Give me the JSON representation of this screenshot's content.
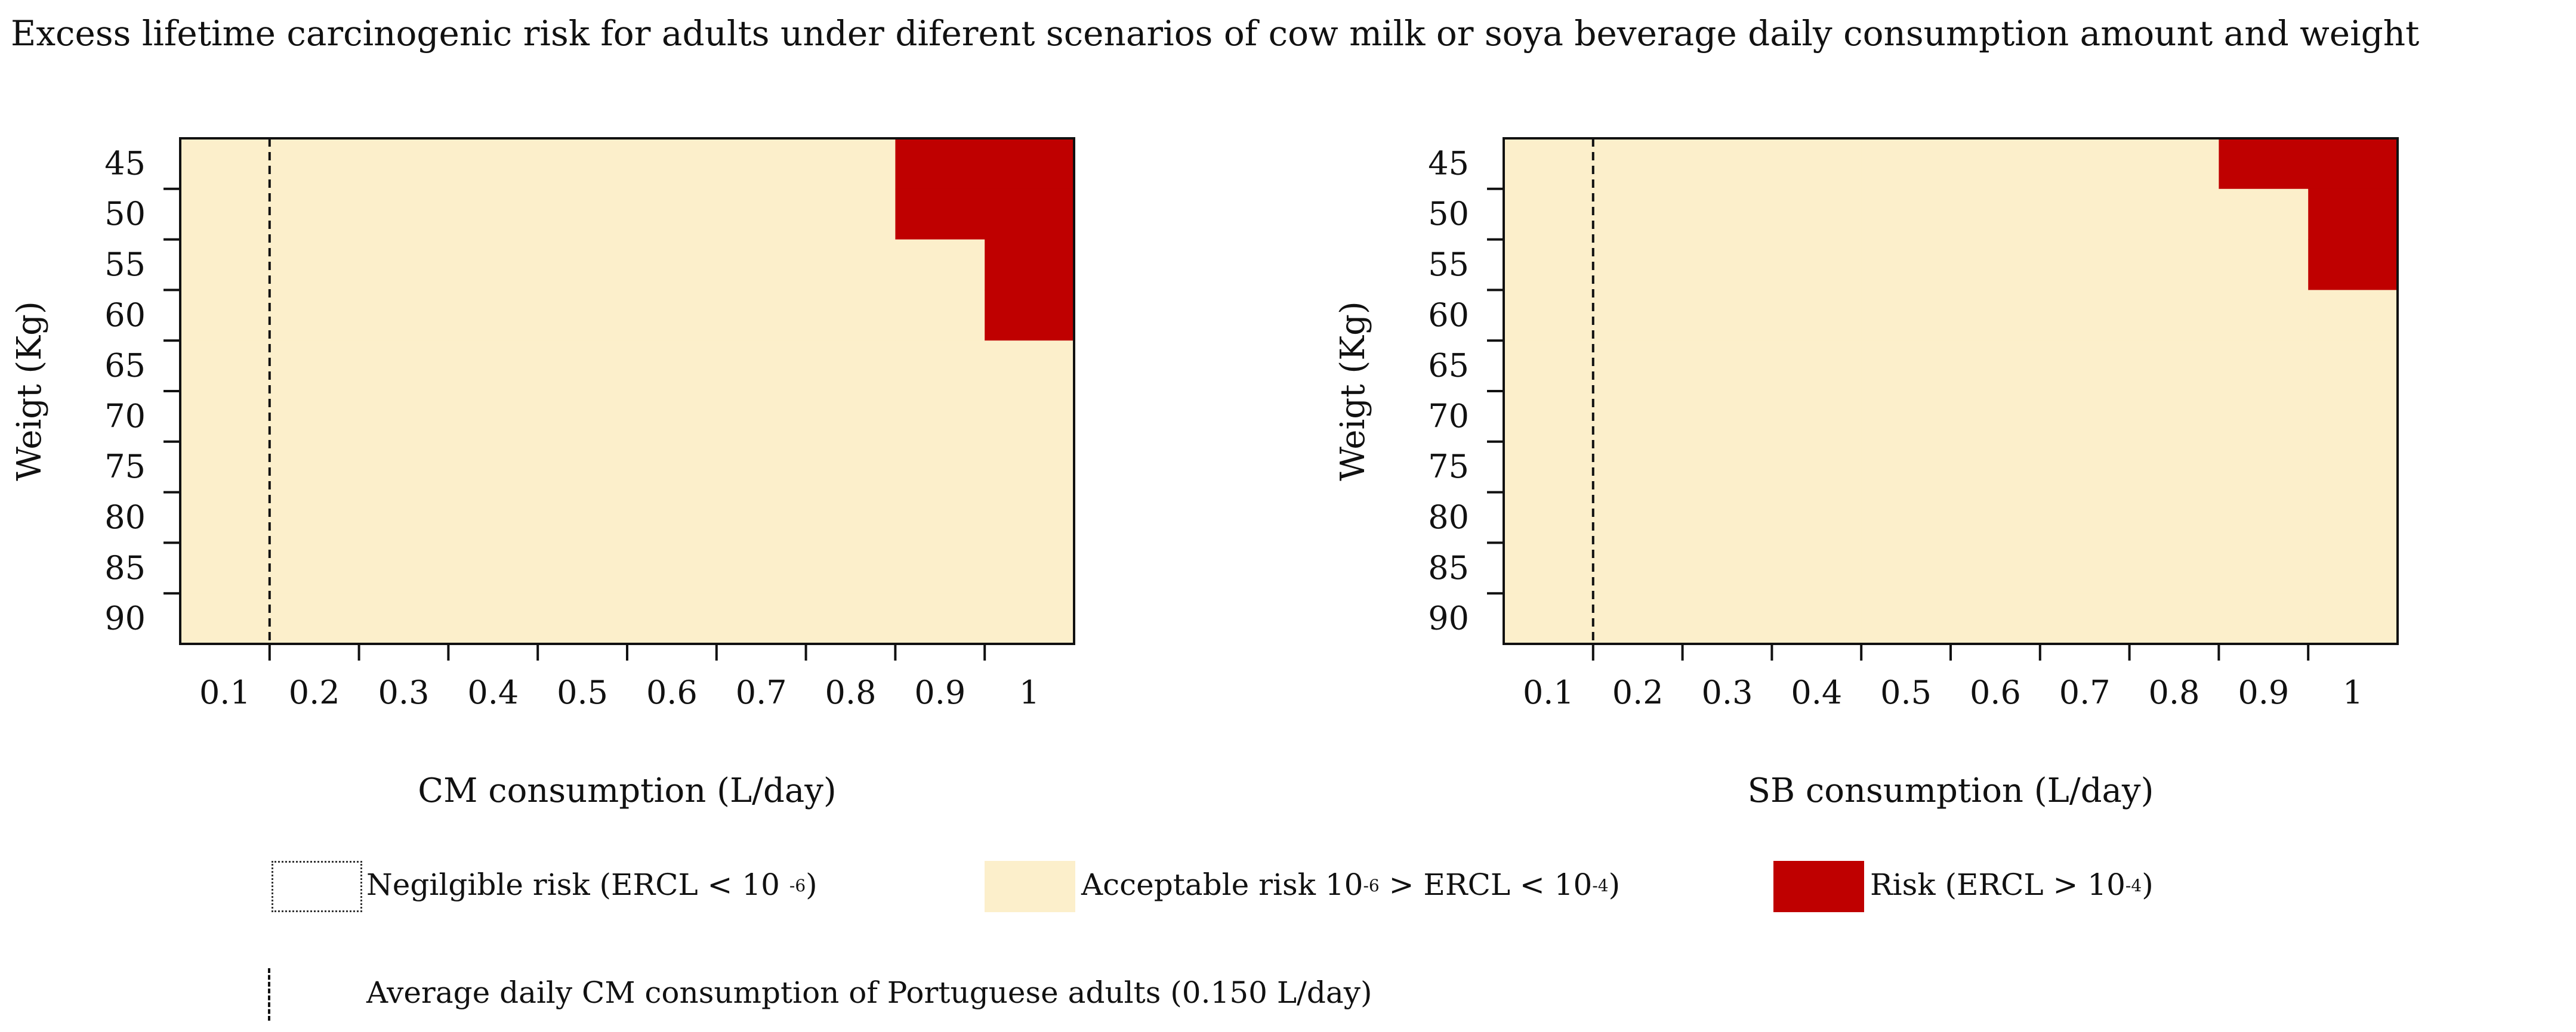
{
  "title": "Excess lifetime carcinogenic risk for adults under diferent scenarios of cow milk or soya beverage daily consumption amount and weight",
  "colors": {
    "acceptable": "#fcefcb",
    "risk": "#bf0000",
    "negligible": "#ffffff",
    "axis": "#111111"
  },
  "chart_data": [
    {
      "type": "heatmap",
      "name": "cow-milk",
      "x_categories": [
        "0.1",
        "0.2",
        "0.3",
        "0.4",
        "0.5",
        "0.6",
        "0.7",
        "0.8",
        "0.9",
        "1"
      ],
      "y_categories": [
        "45",
        "50",
        "55",
        "60",
        "65",
        "70",
        "75",
        "80",
        "85",
        "90"
      ],
      "xlabel": "CM consumption (L/day)",
      "ylabel": "Weigt (Kg)",
      "reference_line_x": 0.15,
      "risk_cells": [
        {
          "x": "0.9",
          "y": [
            "45",
            "50"
          ]
        },
        {
          "x": "1",
          "y": [
            "45",
            "50",
            "55",
            "60"
          ]
        }
      ],
      "default_level": "acceptable"
    },
    {
      "type": "heatmap",
      "name": "soya-beverage",
      "x_categories": [
        "0.1",
        "0.2",
        "0.3",
        "0.4",
        "0.5",
        "0.6",
        "0.7",
        "0.8",
        "0.9",
        "1"
      ],
      "y_categories": [
        "45",
        "50",
        "55",
        "60",
        "65",
        "70",
        "75",
        "80",
        "85",
        "90"
      ],
      "xlabel": "SB consumption (L/day)",
      "ylabel": "Weigt (Kg)",
      "reference_line_x": 0.15,
      "risk_cells": [
        {
          "x": "0.9",
          "y": [
            "45"
          ]
        },
        {
          "x": "1",
          "y": [
            "45",
            "50",
            "55"
          ]
        }
      ],
      "default_level": "acceptable"
    }
  ],
  "legend": {
    "negligible": {
      "pre": "Negilgible risk (ERCL < 10 ",
      "exp": "-6",
      "post": ")"
    },
    "acceptable": {
      "pre": "Acceptable risk 10",
      "exp1": "-6",
      "mid": " > ERCL < 10",
      "exp2": "-4",
      "post": ")"
    },
    "risk": {
      "pre": "Risk (ERCL > 10",
      "exp": "-4",
      "post": ")"
    },
    "average": "Average daily CM consumption of  Portuguese adults (0.150 L/day)"
  }
}
